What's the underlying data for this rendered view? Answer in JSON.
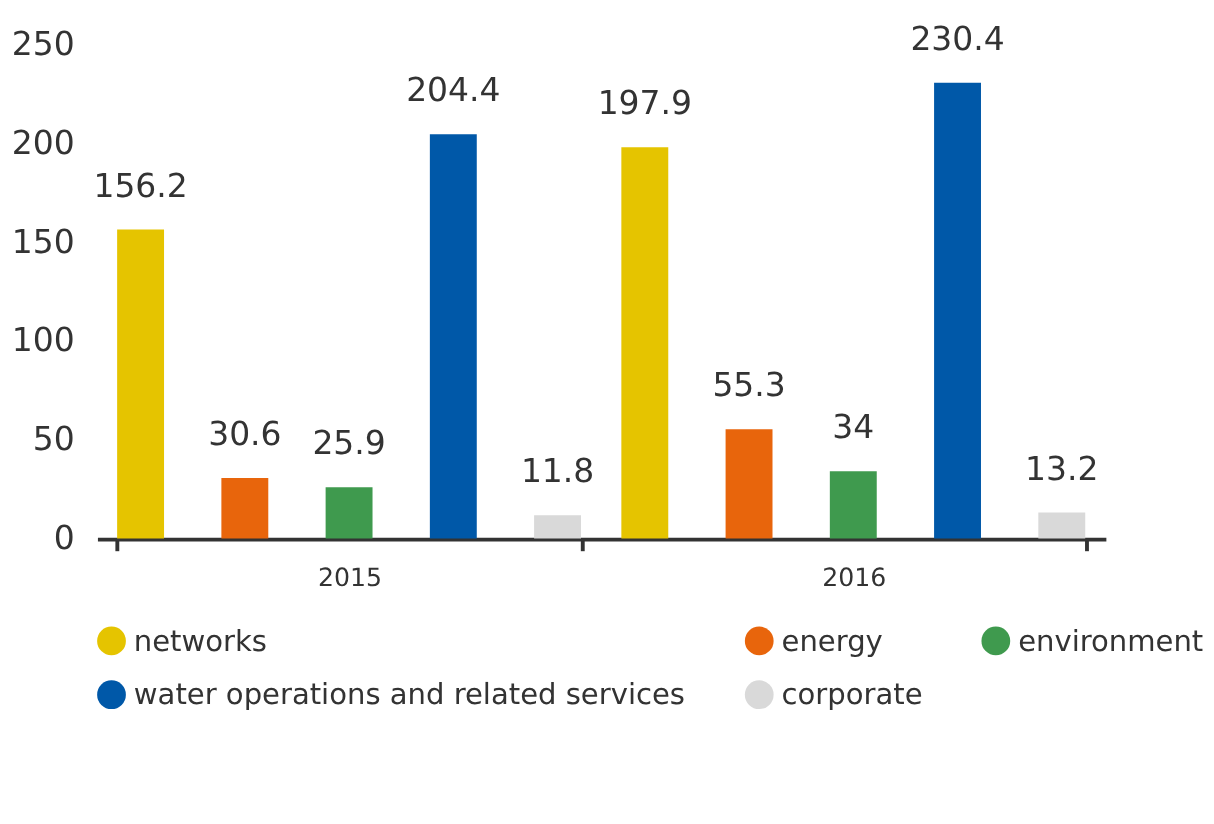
{
  "chart_data": {
    "type": "bar",
    "categories": [
      "2015",
      "2016"
    ],
    "series": [
      {
        "name": "networks",
        "color": "#e5c400",
        "values": [
          156.2,
          197.9
        ]
      },
      {
        "name": "energy",
        "color": "#e8650c",
        "values": [
          30.6,
          55.3
        ]
      },
      {
        "name": "environment",
        "color": "#3f9a4e",
        "values": [
          25.9,
          34
        ]
      },
      {
        "name": "water operations and related services",
        "color": "#0058a8",
        "values": [
          204.4,
          230.4
        ]
      },
      {
        "name": "corporate",
        "color": "#d9d9d9",
        "values": [
          11.8,
          13.2
        ]
      }
    ],
    "ylim": [
      0,
      250
    ],
    "yticks": [
      0,
      50,
      100,
      150,
      200,
      250
    ],
    "data_labels": true,
    "grid": false,
    "legend": "bottom"
  }
}
